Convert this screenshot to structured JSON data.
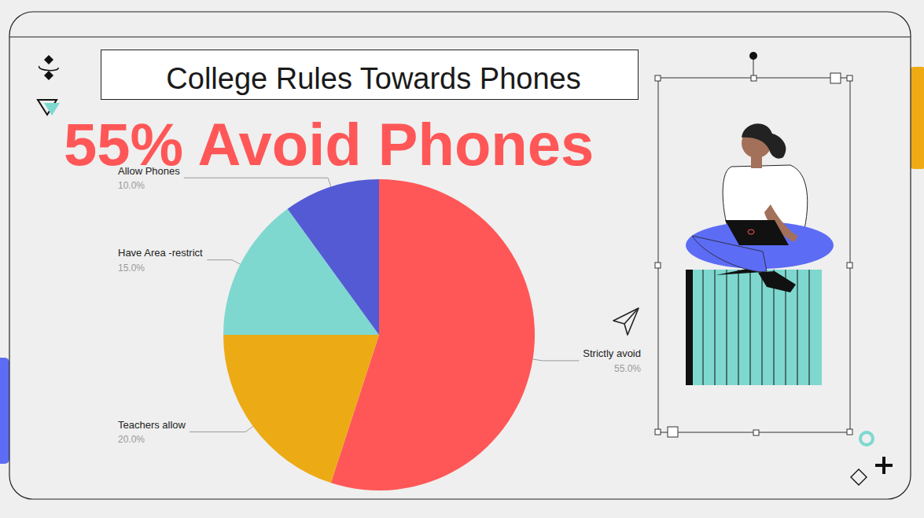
{
  "chart_data": {
    "type": "pie",
    "title": "College Rules Towards Phones",
    "subtitle": "55% Avoid Phones",
    "categories": [
      "Strictly avoid",
      "Teachers allow",
      "Have Area -restrict",
      "Allow Phones"
    ],
    "values": [
      55,
      20,
      15,
      10
    ],
    "value_labels": [
      "55.0%",
      "20.0%",
      "15.0%",
      "10.0%"
    ],
    "colors": [
      "#FF5757",
      "#ECAA15",
      "#7ED8CF",
      "#545AD4"
    ],
    "data_labels": true
  }
}
